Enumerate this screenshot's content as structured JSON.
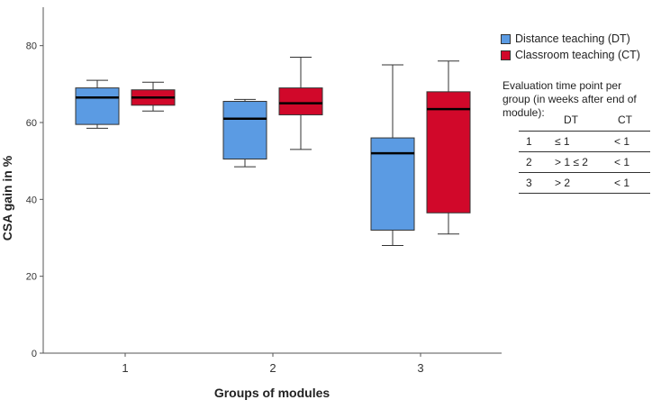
{
  "chart_data": {
    "type": "boxplot",
    "xlabel": "Groups of modules",
    "ylabel": "CSA gain in %",
    "ylim": [
      0,
      90
    ],
    "yticks": [
      0,
      20,
      40,
      60,
      80
    ],
    "categories": [
      "1",
      "2",
      "3"
    ],
    "grid": false,
    "legend_position": "right",
    "series": [
      {
        "name": "Distance teaching (DT)",
        "color": "#5b9be3",
        "boxes": [
          {
            "whisker_low": 58.5,
            "q1": 59.5,
            "median": 66.5,
            "q3": 69,
            "whisker_high": 71
          },
          {
            "whisker_low": 48.5,
            "q1": 50.5,
            "median": 61,
            "q3": 65.5,
            "whisker_high": 66
          },
          {
            "whisker_low": 28,
            "q1": 32,
            "median": 52,
            "q3": 56,
            "whisker_high": 75
          }
        ]
      },
      {
        "name": "Classroom teaching (CT)",
        "color": "#d1082a",
        "boxes": [
          {
            "whisker_low": 63,
            "q1": 64.5,
            "median": 66.5,
            "q3": 68.5,
            "whisker_high": 70.5
          },
          {
            "whisker_low": 53,
            "q1": 62,
            "median": 65,
            "q3": 69,
            "whisker_high": 77
          },
          {
            "whisker_low": 31,
            "q1": 36.5,
            "median": 63.5,
            "q3": 68,
            "whisker_high": 76
          }
        ]
      }
    ],
    "annotation": {
      "title": "Evaluation time point per group (in weeks after end of module):",
      "columns": [
        "",
        "DT",
        "CT"
      ],
      "rows": [
        [
          "1",
          "≤ 1",
          "< 1"
        ],
        [
          "2",
          "> 1 ≤ 2",
          "< 1"
        ],
        [
          "3",
          "> 2",
          "< 1"
        ]
      ]
    }
  }
}
